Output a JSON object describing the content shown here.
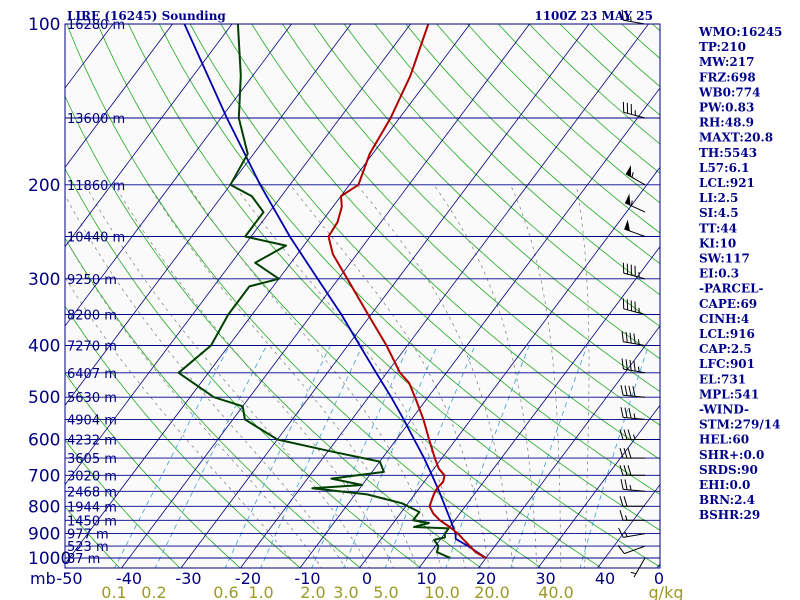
{
  "header": {
    "title": "LIRE (16245) Sounding",
    "time": "1100Z 23 MAY 25"
  },
  "colors": {
    "background": "#ffffff",
    "plot_bg": "#fafafa",
    "isobar": "#00008b",
    "isotherm": "#000080",
    "dry_adiabat": "#22aa22",
    "moist_adiabat": "#8a8a8a",
    "mixing_ratio": "#3aa0d8",
    "temperature": "#b00000",
    "dewpoint": "#004000",
    "parcel": "#0000b0",
    "wind_barb": "#000000",
    "text": "#00008b"
  },
  "chart_data": {
    "type": "skew-t log-p sounding",
    "title": "LIRE (16245) Sounding",
    "time": "1100Z 23 MAY 25",
    "pressure_axis": {
      "unit": "mb",
      "ticks": [
        100,
        200,
        300,
        400,
        500,
        600,
        700,
        800,
        900,
        1000
      ],
      "range": [
        1050,
        100
      ],
      "scale": "log"
    },
    "temperature_axis": {
      "ticks": [
        "-50",
        "-40",
        "-30",
        "-20",
        "-10",
        "0",
        "10",
        "20",
        "30",
        "40"
      ],
      "range": [
        -50,
        50
      ]
    },
    "height_labels": [
      {
        "p": 100,
        "label": "16280 m"
      },
      {
        "p": 150,
        "label": "13600 m"
      },
      {
        "p": 200,
        "label": "11860 m"
      },
      {
        "p": 250,
        "label": "10440 m"
      },
      {
        "p": 300,
        "label": "9250 m"
      },
      {
        "p": 350,
        "label": "8200 m"
      },
      {
        "p": 400,
        "label": "7270 m"
      },
      {
        "p": 450,
        "label": "6407 m"
      },
      {
        "p": 500,
        "label": "5630 m"
      },
      {
        "p": 550,
        "label": "4904 m"
      },
      {
        "p": 600,
        "label": "4232 m"
      },
      {
        "p": 650,
        "label": "3605 m"
      },
      {
        "p": 700,
        "label": "3020 m"
      },
      {
        "p": 750,
        "label": "2468 m"
      },
      {
        "p": 800,
        "label": "1944 m"
      },
      {
        "p": 850,
        "label": "1450 m"
      },
      {
        "p": 900,
        "label": "977 m"
      },
      {
        "p": 950,
        "label": "523 m"
      },
      {
        "p": 1000,
        "label": "87 m"
      }
    ],
    "mixing_ratio_axis": {
      "unit": "g/kg",
      "values": [
        0.1,
        0.2,
        0.6,
        1.0,
        2.0,
        3.0,
        5.0,
        10.0,
        20.0,
        40.0
      ],
      "labels": [
        "0.1",
        "0.2",
        "0.6",
        "1.0",
        "2.0",
        "3.0",
        "5.0",
        "10.0",
        "20.0",
        "40.0"
      ],
      "unit_label": "g/kg"
    },
    "corner_unit_label": "mb",
    "temperature_profile": [
      {
        "p": 1000,
        "t": 20.0
      },
      {
        "p": 975,
        "t": 17.5
      },
      {
        "p": 950,
        "t": 15.8
      },
      {
        "p": 925,
        "t": 14.0
      },
      {
        "p": 900,
        "t": 12.2
      },
      {
        "p": 875,
        "t": 10.0
      },
      {
        "p": 850,
        "t": 7.5
      },
      {
        "p": 825,
        "t": 5.5
      },
      {
        "p": 800,
        "t": 4.0
      },
      {
        "p": 780,
        "t": 3.6
      },
      {
        "p": 760,
        "t": 3.2
      },
      {
        "p": 740,
        "t": 3.0
      },
      {
        "p": 720,
        "t": 3.2
      },
      {
        "p": 700,
        "t": 2.6
      },
      {
        "p": 680,
        "t": 0.8
      },
      {
        "p": 650,
        "t": -1.2
      },
      {
        "p": 600,
        "t": -4.5
      },
      {
        "p": 550,
        "t": -8.0
      },
      {
        "p": 500,
        "t": -12.2
      },
      {
        "p": 470,
        "t": -15.0
      },
      {
        "p": 450,
        "t": -17.8
      },
      {
        "p": 400,
        "t": -23.5
      },
      {
        "p": 350,
        "t": -30.5
      },
      {
        "p": 300,
        "t": -38.5
      },
      {
        "p": 270,
        "t": -44.0
      },
      {
        "p": 250,
        "t": -47.0
      },
      {
        "p": 235,
        "t": -47.3
      },
      {
        "p": 220,
        "t": -48.5
      },
      {
        "p": 210,
        "t": -50.0
      },
      {
        "p": 200,
        "t": -48.5
      },
      {
        "p": 175,
        "t": -50.5
      },
      {
        "p": 150,
        "t": -51.5
      },
      {
        "p": 125,
        "t": -53.5
      },
      {
        "p": 100,
        "t": -57.0
      }
    ],
    "dewpoint_profile": [
      {
        "p": 1000,
        "t": 14.0
      },
      {
        "p": 975,
        "t": 11.0
      },
      {
        "p": 950,
        "t": 10.5
      },
      {
        "p": 925,
        "t": 9.0
      },
      {
        "p": 915,
        "t": 10.5
      },
      {
        "p": 900,
        "t": 10.0
      },
      {
        "p": 880,
        "t": 10.0
      },
      {
        "p": 875,
        "t": 4.0
      },
      {
        "p": 860,
        "t": 6.0
      },
      {
        "p": 850,
        "t": 3.0
      },
      {
        "p": 820,
        "t": 3.0
      },
      {
        "p": 790,
        "t": -1.0
      },
      {
        "p": 760,
        "t": -8.0
      },
      {
        "p": 740,
        "t": -18.0
      },
      {
        "p": 730,
        "t": -10.0
      },
      {
        "p": 710,
        "t": -16.0
      },
      {
        "p": 690,
        "t": -8.0
      },
      {
        "p": 660,
        "t": -10.0
      },
      {
        "p": 630,
        "t": -20.0
      },
      {
        "p": 600,
        "t": -30.0
      },
      {
        "p": 550,
        "t": -38.0
      },
      {
        "p": 520,
        "t": -40.0
      },
      {
        "p": 500,
        "t": -46.0
      },
      {
        "p": 450,
        "t": -55.0
      },
      {
        "p": 400,
        "t": -53.0
      },
      {
        "p": 350,
        "t": -54.0
      },
      {
        "p": 310,
        "t": -54.0
      },
      {
        "p": 300,
        "t": -50.0
      },
      {
        "p": 280,
        "t": -56.0
      },
      {
        "p": 260,
        "t": -53.0
      },
      {
        "p": 250,
        "t": -61.0
      },
      {
        "p": 225,
        "t": -61.0
      },
      {
        "p": 210,
        "t": -65.0
      },
      {
        "p": 200,
        "t": -70.0
      },
      {
        "p": 175,
        "t": -71.0
      },
      {
        "p": 150,
        "t": -77.0
      },
      {
        "p": 125,
        "t": -82.0
      },
      {
        "p": 100,
        "t": -89.0
      }
    ],
    "parcel_path": [
      {
        "p": 1000,
        "t": 20.0
      },
      {
        "p": 950,
        "t": 15.5
      },
      {
        "p": 921,
        "t": 12.5
      },
      {
        "p": 900,
        "t": 11.8
      },
      {
        "p": 850,
        "t": 9.3
      },
      {
        "p": 800,
        "t": 6.6
      },
      {
        "p": 750,
        "t": 3.7
      },
      {
        "p": 700,
        "t": 0.5
      },
      {
        "p": 650,
        "t": -3.0
      },
      {
        "p": 600,
        "t": -7.0
      },
      {
        "p": 550,
        "t": -11.3
      },
      {
        "p": 500,
        "t": -16.2
      },
      {
        "p": 450,
        "t": -21.8
      },
      {
        "p": 400,
        "t": -28.0
      },
      {
        "p": 350,
        "t": -35.0
      },
      {
        "p": 300,
        "t": -43.5
      },
      {
        "p": 250,
        "t": -53.5
      },
      {
        "p": 200,
        "t": -65.0
      },
      {
        "p": 150,
        "t": -79.0
      },
      {
        "p": 100,
        "t": -98.0
      }
    ],
    "wind_barbs": [
      {
        "p": 1000,
        "dir": 210,
        "spd": 5
      },
      {
        "p": 950,
        "dir": 250,
        "spd": 10
      },
      {
        "p": 900,
        "dir": 260,
        "spd": 15
      },
      {
        "p": 850,
        "dir": 270,
        "spd": 15
      },
      {
        "p": 800,
        "dir": 270,
        "spd": 20
      },
      {
        "p": 750,
        "dir": 275,
        "spd": 25
      },
      {
        "p": 700,
        "dir": 270,
        "spd": 30
      },
      {
        "p": 650,
        "dir": 270,
        "spd": 30
      },
      {
        "p": 600,
        "dir": 270,
        "spd": 35
      },
      {
        "p": 550,
        "dir": 275,
        "spd": 35
      },
      {
        "p": 500,
        "dir": 275,
        "spd": 40
      },
      {
        "p": 450,
        "dir": 280,
        "spd": 45
      },
      {
        "p": 400,
        "dir": 280,
        "spd": 45
      },
      {
        "p": 350,
        "dir": 285,
        "spd": 45
      },
      {
        "p": 300,
        "dir": 285,
        "spd": 45
      },
      {
        "p": 250,
        "dir": 290,
        "spd": 50
      },
      {
        "p": 225,
        "dir": 295,
        "spd": 55
      },
      {
        "p": 200,
        "dir": 300,
        "spd": 55
      },
      {
        "p": 150,
        "dir": 285,
        "spd": 35
      },
      {
        "p": 100,
        "dir": 280,
        "spd": 25
      }
    ],
    "grid": true
  },
  "indices": [
    "WMO:16245",
    "TP:210",
    "MW:217",
    "FRZ:698",
    "WB0:774",
    "PW:0.83",
    "RH:48.9",
    "MAXT:20.8",
    "TH:5543",
    "L57:6.1",
    "LCL:921",
    "LI:2.5",
    "SI:4.5",
    "TT:44",
    "KI:10",
    "SW:117",
    "EI:0.3",
    "-PARCEL-",
    "CAPE:69",
    "CINH:4",
    "LCL:916",
    "CAP:2.5",
    "LFC:901",
    "EL:731",
    "MPL:541",
    "-WIND-",
    "STM:279/14",
    "HEL:60",
    "SHR+:0.0",
    "SRDS:90",
    "EHI:0.0",
    "BRN:2.4",
    "BSHR:29"
  ]
}
